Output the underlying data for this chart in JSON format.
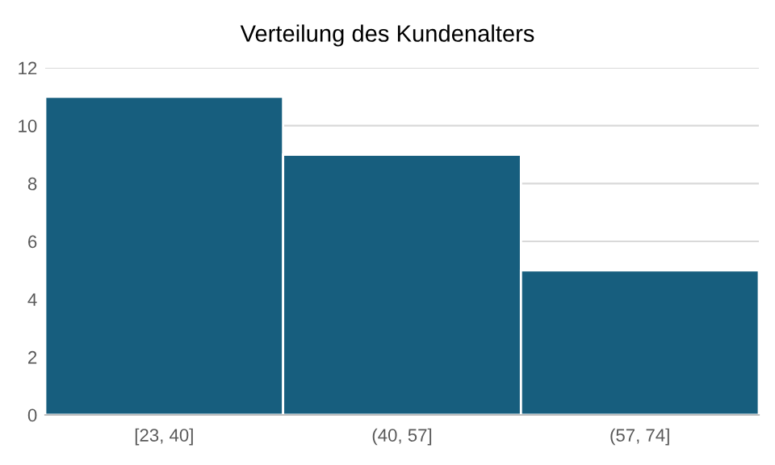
{
  "chart_data": {
    "type": "bar",
    "title": "Verteilung des Kundenalters",
    "categories": [
      "[23, 40]",
      "(40, 57]",
      "(57, 74]"
    ],
    "values": [
      11,
      9,
      5
    ],
    "color": "#175e7e",
    "ylim": [
      0,
      12
    ],
    "yticks": [
      0,
      2,
      4,
      6,
      8,
      10,
      12
    ],
    "grid": "y"
  }
}
